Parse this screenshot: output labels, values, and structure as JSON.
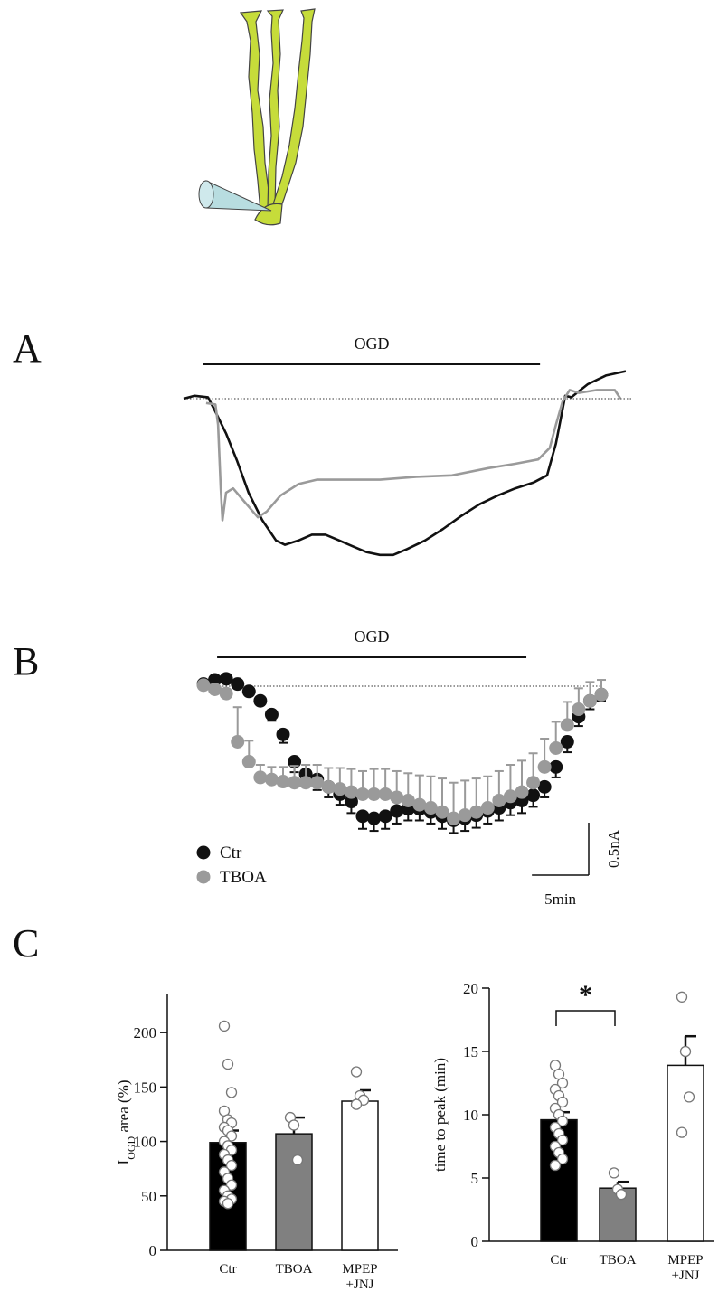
{
  "chart_data": [
    {
      "type": "line",
      "panel_label": "A",
      "annotation": {
        "text": "OGD",
        "from": 4.5,
        "to": 80.6
      },
      "reference_line": 0,
      "xlim": [
        0,
        100
      ],
      "ylim": [
        -1.2,
        0.25
      ],
      "series": [
        {
          "color": "#111111",
          "x": [
            0,
            2.5,
            5.5,
            7.2,
            9.6,
            12.1,
            14.7,
            17.8,
            20.9,
            22.9,
            26,
            29,
            32.1,
            35.2,
            38.2,
            41.3,
            44.4,
            47.4,
            50.5,
            54.6,
            58.7,
            62.8,
            66.9,
            71,
            75,
            79.1,
            82.2,
            84.2,
            86.3,
            87.7,
            91.4,
            95.5,
            100
          ],
          "values": [
            0,
            0.02,
            0.01,
            -0.09,
            -0.24,
            -0.43,
            -0.65,
            -0.84,
            -0.98,
            -1.01,
            -0.98,
            -0.94,
            -0.94,
            -0.98,
            -1.02,
            -1.06,
            -1.08,
            -1.08,
            -1.04,
            -0.98,
            -0.9,
            -0.81,
            -0.73,
            -0.67,
            -0.62,
            -0.58,
            -0.53,
            -0.31,
            0.02,
            0.01,
            0.1,
            0.16,
            0.19
          ]
        },
        {
          "color": "#9a9a9a",
          "x": [
            5.1,
            7.2,
            7.8,
            8.4,
            8.8,
            9.6,
            11.2,
            13.7,
            16.8,
            18.8,
            21.9,
            26,
            30.1,
            36.2,
            44.4,
            52.6,
            60.7,
            68.9,
            75,
            80.2,
            82.8,
            84.2,
            85.7,
            87.3,
            89.4,
            93.5,
            97.5,
            98.8
          ],
          "values": [
            -0.03,
            -0.04,
            -0.18,
            -0.62,
            -0.84,
            -0.65,
            -0.62,
            -0.71,
            -0.82,
            -0.78,
            -0.67,
            -0.59,
            -0.56,
            -0.56,
            -0.56,
            -0.54,
            -0.53,
            -0.48,
            -0.45,
            -0.42,
            -0.34,
            -0.18,
            -0.02,
            0.06,
            0.04,
            0.06,
            0.06,
            0
          ]
        }
      ]
    },
    {
      "type": "errorbar",
      "panel_label": "B",
      "annotation": {
        "text": "OGD",
        "from": 1.2,
        "to": 28.4
      },
      "reference_line": 0,
      "xlim": [
        0,
        35
      ],
      "ylim": [
        -1.6,
        0.1
      ],
      "x": [
        0,
        1,
        2,
        3,
        4,
        5,
        6,
        7,
        8,
        9,
        10,
        11,
        12,
        13,
        14,
        15,
        16,
        17,
        18,
        19,
        20,
        21,
        22,
        23,
        24,
        25,
        26,
        27,
        28,
        29,
        30,
        31,
        32,
        33,
        34,
        35
      ],
      "series": [
        {
          "name": "Ctr",
          "color": "#111111",
          "error_direction": "down",
          "values": [
            0.02,
            0.06,
            0.07,
            0.02,
            -0.05,
            -0.14,
            -0.27,
            -0.46,
            -0.72,
            -0.84,
            -0.89,
            -0.96,
            -1.03,
            -1.1,
            -1.24,
            -1.26,
            -1.24,
            -1.19,
            -1.17,
            -1.17,
            -1.2,
            -1.24,
            -1.28,
            -1.26,
            -1.23,
            -1.19,
            -1.16,
            -1.11,
            -1.09,
            -1.04,
            -0.96,
            -0.77,
            -0.53,
            -0.29,
            -0.14,
            -0.08
          ],
          "errors": [
            0.01,
            0.01,
            0.01,
            0.02,
            0.03,
            0.04,
            0.06,
            0.08,
            0.1,
            0.1,
            0.1,
            0.1,
            0.1,
            0.11,
            0.12,
            0.12,
            0.12,
            0.12,
            0.11,
            0.11,
            0.11,
            0.12,
            0.12,
            0.12,
            0.12,
            0.12,
            0.12,
            0.12,
            0.12,
            0.11,
            0.1,
            0.1,
            0.1,
            0.09,
            0.08,
            0.06
          ]
        },
        {
          "name": "TBOA",
          "color": "#9a9a9a",
          "error_direction": "up",
          "values": [
            0.01,
            -0.03,
            -0.07,
            -0.53,
            -0.72,
            -0.87,
            -0.89,
            -0.91,
            -0.92,
            -0.92,
            -0.92,
            -0.96,
            -0.98,
            -1.01,
            -1.03,
            -1.03,
            -1.03,
            -1.06,
            -1.09,
            -1.13,
            -1.16,
            -1.2,
            -1.26,
            -1.23,
            -1.2,
            -1.16,
            -1.09,
            -1.05,
            -1.01,
            -0.92,
            -0.77,
            -0.59,
            -0.37,
            -0.22,
            -0.14,
            -0.08
          ],
          "errors": [
            0.01,
            0.02,
            0.03,
            0.33,
            0.2,
            0.12,
            0.12,
            0.14,
            0.16,
            0.17,
            0.17,
            0.18,
            0.2,
            0.22,
            0.22,
            0.24,
            0.24,
            0.25,
            0.26,
            0.28,
            0.3,
            0.32,
            0.34,
            0.33,
            0.32,
            0.3,
            0.28,
            0.3,
            0.3,
            0.28,
            0.27,
            0.25,
            0.22,
            0.2,
            0.18,
            0.14
          ]
        }
      ],
      "scale_bar": {
        "x_value": 5,
        "x_label": "5min",
        "y_value": 0.5,
        "y_label": "0.5nA"
      }
    },
    {
      "type": "bar",
      "panel_label": "C",
      "y_label": [
        "I",
        "OGD",
        " area (%)"
      ],
      "categories": [
        [
          "Ctr"
        ],
        [
          "TBOA"
        ],
        [
          "MPEP",
          "+JNJ"
        ]
      ],
      "values": [
        99,
        107,
        137
      ],
      "errors": [
        11,
        15,
        10
      ],
      "colors": [
        "#000000",
        "#808080",
        "#ffffff"
      ],
      "points": [
        [
          206,
          171,
          145,
          128,
          120,
          117,
          113,
          110,
          105,
          100,
          96,
          92,
          88,
          83,
          78,
          72,
          66,
          60,
          55,
          50,
          47,
          45,
          43
        ],
        [
          122,
          115,
          83
        ],
        [
          164,
          142,
          138,
          134
        ]
      ],
      "ylim": [
        0,
        235
      ],
      "yticks": [
        0,
        50,
        100,
        150,
        200
      ]
    },
    {
      "type": "bar",
      "y_label": "time to peak (min)",
      "categories": [
        [
          "Ctr"
        ],
        [
          "TBOA"
        ],
        [
          "MPEP",
          "+JNJ"
        ]
      ],
      "values": [
        9.6,
        4.2,
        13.9
      ],
      "errors": [
        0.6,
        0.5,
        2.3
      ],
      "colors": [
        "#000000",
        "#808080",
        "#ffffff"
      ],
      "points": [
        [
          13.9,
          13.2,
          12.5,
          12,
          11.5,
          11,
          10.5,
          10,
          9.5,
          9,
          8.5,
          8,
          7.5,
          7,
          6.5,
          6
        ],
        [
          5.4,
          4.1,
          3.7
        ],
        [
          19.3,
          15,
          11.4,
          8.6
        ]
      ],
      "significance": {
        "label": "*",
        "between": [
          0,
          1
        ]
      },
      "ylim": [
        0,
        20
      ],
      "yticks": [
        0,
        5,
        10,
        15,
        20
      ]
    }
  ]
}
